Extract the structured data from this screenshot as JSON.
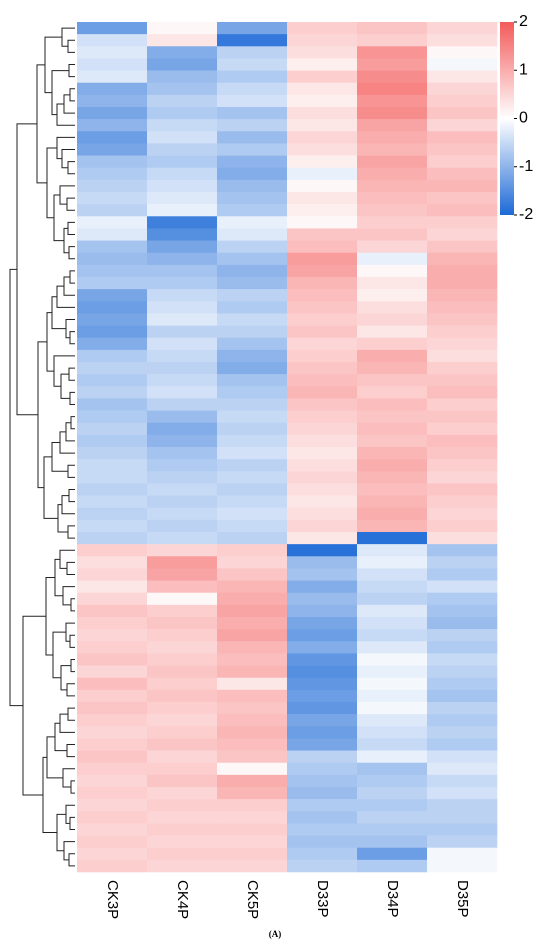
{
  "chart_data": {
    "type": "heatmap",
    "categories": [
      "CK3P",
      "CK4P",
      "CK5P",
      "D33P",
      "D34P",
      "D35P"
    ],
    "values": [
      [
        -1.3,
        0.1,
        -1.2,
        0.6,
        0.7,
        0.5
      ],
      [
        -0.4,
        0.3,
        -1.8,
        0.5,
        0.6,
        0.4
      ],
      [
        -0.3,
        -1.1,
        -0.6,
        0.4,
        1.3,
        0.1
      ],
      [
        -0.4,
        -1.2,
        -0.5,
        0.2,
        1.2,
        -0.1
      ],
      [
        -0.3,
        -0.9,
        -0.7,
        0.6,
        1.4,
        0.3
      ],
      [
        -1.1,
        -0.8,
        -0.5,
        0.3,
        1.5,
        0.5
      ],
      [
        -1.0,
        -0.6,
        -0.4,
        0.2,
        1.3,
        0.6
      ],
      [
        -1.2,
        -0.7,
        -0.8,
        0.4,
        1.4,
        0.7
      ],
      [
        -1.0,
        -0.5,
        -0.6,
        0.3,
        1.1,
        0.5
      ],
      [
        -1.3,
        -0.4,
        -0.9,
        0.5,
        1.0,
        0.8
      ],
      [
        -1.2,
        -0.6,
        -0.7,
        0.4,
        0.9,
        0.7
      ],
      [
        -0.8,
        -0.7,
        -1.0,
        0.2,
        1.1,
        0.6
      ],
      [
        -0.7,
        -0.5,
        -1.1,
        -0.2,
        1.0,
        0.8
      ],
      [
        -0.6,
        -0.4,
        -0.9,
        0.1,
        0.9,
        0.9
      ],
      [
        -0.5,
        -0.3,
        -0.8,
        0.3,
        0.8,
        0.7
      ],
      [
        -0.6,
        -0.2,
        -0.7,
        0.2,
        0.7,
        0.8
      ],
      [
        -0.2,
        -1.7,
        -0.2,
        0.1,
        0.6,
        0.6
      ],
      [
        -0.3,
        -1.5,
        -0.3,
        0.7,
        0.7,
        0.5
      ],
      [
        -0.8,
        -1.2,
        -0.6,
        0.8,
        0.5,
        0.7
      ],
      [
        -0.9,
        -1.0,
        -0.8,
        1.2,
        -0.2,
        0.9
      ],
      [
        -0.8,
        -0.8,
        -1.0,
        1.1,
        0.1,
        1.0
      ],
      [
        -0.7,
        -0.7,
        -0.9,
        0.9,
        0.3,
        1.0
      ],
      [
        -1.2,
        -0.5,
        -0.6,
        0.8,
        0.2,
        0.9
      ],
      [
        -1.3,
        -0.4,
        -0.7,
        0.7,
        0.4,
        0.8
      ],
      [
        -1.2,
        -0.3,
        -0.5,
        0.6,
        0.5,
        0.7
      ],
      [
        -1.3,
        -0.6,
        -0.6,
        0.7,
        0.3,
        0.6
      ],
      [
        -1.1,
        -0.4,
        -0.8,
        0.5,
        0.6,
        0.5
      ],
      [
        -0.7,
        -0.5,
        -1.0,
        0.6,
        1.0,
        0.4
      ],
      [
        -0.6,
        -0.6,
        -1.1,
        0.7,
        0.9,
        0.6
      ],
      [
        -0.7,
        -0.5,
        -0.8,
        0.8,
        0.7,
        0.7
      ],
      [
        -0.6,
        -0.4,
        -0.7,
        0.9,
        0.6,
        0.8
      ],
      [
        -0.8,
        -0.6,
        -0.6,
        0.7,
        0.8,
        0.6
      ],
      [
        -0.7,
        -0.9,
        -0.5,
        0.6,
        0.7,
        0.7
      ],
      [
        -0.6,
        -1.1,
        -0.6,
        0.5,
        0.8,
        0.6
      ],
      [
        -0.7,
        -1.0,
        -0.5,
        0.4,
        0.7,
        0.8
      ],
      [
        -0.6,
        -0.8,
        -0.4,
        0.3,
        0.9,
        0.7
      ],
      [
        -0.5,
        -0.7,
        -0.6,
        0.4,
        1.0,
        0.6
      ],
      [
        -0.5,
        -0.6,
        -0.5,
        0.5,
        0.9,
        0.5
      ],
      [
        -0.6,
        -0.5,
        -0.6,
        0.4,
        0.8,
        0.7
      ],
      [
        -0.5,
        -0.6,
        -0.5,
        0.3,
        0.9,
        0.6
      ],
      [
        -0.6,
        -0.5,
        -0.4,
        0.4,
        1.0,
        0.5
      ],
      [
        -0.5,
        -0.6,
        -0.5,
        0.5,
        0.9,
        0.6
      ],
      [
        -0.6,
        -0.5,
        -0.6,
        0.3,
        -1.9,
        0.4
      ],
      [
        0.6,
        0.5,
        0.6,
        -1.9,
        -0.3,
        -0.8
      ],
      [
        0.4,
        1.2,
        0.5,
        -0.9,
        -0.2,
        -0.6
      ],
      [
        0.5,
        1.1,
        0.7,
        -0.8,
        -0.4,
        -0.7
      ],
      [
        0.3,
        0.8,
        0.9,
        -1.1,
        -0.5,
        -0.4
      ],
      [
        0.5,
        0.1,
        1.0,
        -0.9,
        -0.6,
        -0.7
      ],
      [
        0.7,
        0.6,
        1.1,
        -1.0,
        -0.3,
        -0.8
      ],
      [
        0.6,
        0.7,
        1.0,
        -1.2,
        -0.4,
        -0.9
      ],
      [
        0.5,
        0.6,
        1.1,
        -1.3,
        -0.5,
        -0.6
      ],
      [
        0.6,
        0.5,
        0.9,
        -1.1,
        -0.3,
        -0.7
      ],
      [
        0.7,
        0.6,
        0.8,
        -1.4,
        -0.1,
        -0.5
      ],
      [
        0.5,
        0.7,
        0.9,
        -1.5,
        -0.2,
        -0.6
      ],
      [
        0.8,
        0.6,
        0.3,
        -1.4,
        -0.1,
        -0.7
      ],
      [
        0.6,
        0.7,
        0.8,
        -1.3,
        -0.2,
        -0.8
      ],
      [
        0.7,
        0.6,
        0.7,
        -1.4,
        -0.1,
        -0.6
      ],
      [
        0.6,
        0.5,
        0.8,
        -1.2,
        -0.3,
        -0.7
      ],
      [
        0.5,
        0.6,
        0.9,
        -1.3,
        -0.4,
        -0.6
      ],
      [
        0.6,
        0.7,
        0.8,
        -1.2,
        -0.5,
        -0.7
      ],
      [
        0.7,
        0.5,
        0.7,
        -0.6,
        -0.2,
        -0.4
      ],
      [
        0.6,
        0.6,
        0.1,
        -0.7,
        -0.8,
        -0.3
      ],
      [
        0.5,
        0.7,
        1.0,
        -0.8,
        -0.7,
        -0.5
      ],
      [
        0.6,
        0.5,
        0.9,
        -0.9,
        -0.6,
        -0.4
      ],
      [
        0.5,
        0.6,
        0.6,
        -0.7,
        -0.7,
        -0.6
      ],
      [
        0.6,
        0.5,
        0.5,
        -0.8,
        -0.6,
        -0.6
      ],
      [
        0.5,
        0.6,
        0.6,
        -0.7,
        -0.7,
        -0.7
      ],
      [
        0.6,
        0.5,
        0.5,
        -0.8,
        -0.8,
        -0.6
      ],
      [
        0.5,
        0.6,
        0.6,
        -0.7,
        -1.3,
        -0.1
      ],
      [
        0.6,
        0.5,
        0.5,
        -0.6,
        -0.7,
        -0.1
      ]
    ],
    "zlim": [
      -2,
      2
    ],
    "zticks": [
      2,
      1,
      0,
      -1,
      -2
    ],
    "colors": {
      "low": "#1c69d6",
      "mid": "#ffffff",
      "high": "#f45a5a"
    },
    "caption": "(A)"
  }
}
